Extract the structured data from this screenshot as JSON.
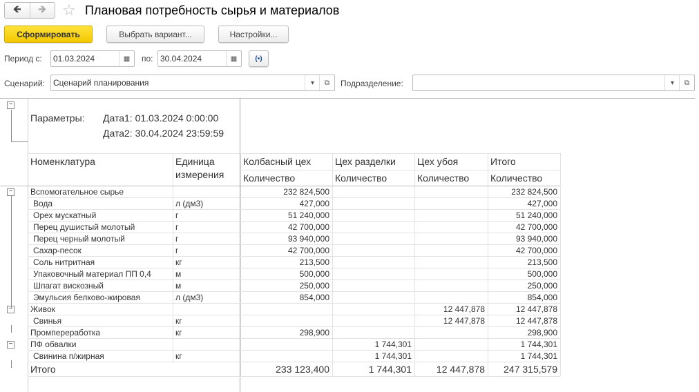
{
  "header": {
    "title": "Плановая потребность сырья и материалов",
    "back_icon": "arrow-left",
    "forward_icon": "arrow-right",
    "favorite_icon": "star"
  },
  "toolbar": {
    "generate": "Сформировать",
    "choose_variant": "Выбрать вариант...",
    "settings": "Настройки..."
  },
  "period": {
    "from_label": "Период с:",
    "from_value": "01.03.2024",
    "to_label": "по:",
    "to_value": "30.04.2024"
  },
  "scenario": {
    "label": "Сценарий:",
    "value": "Сценарий планирования"
  },
  "division": {
    "label": "Подразделение:",
    "value": ""
  },
  "report": {
    "params_label": "Параметры:",
    "date1": "Дата1: 01.03.2024 0:00:00",
    "date2": "Дата2: 30.04.2024 23:59:59",
    "headers": {
      "name": "Номенклатура",
      "unit1": "Единица",
      "unit2": "измерения",
      "cols": [
        "Колбасный цех",
        "Цех разделки",
        "Цех убоя",
        "Итого"
      ],
      "sub": "Количество"
    },
    "rows": [
      {
        "name": "Вспомогательное сырье",
        "unit": "",
        "v": [
          "232 824,500",
          "",
          "",
          "232 824,500"
        ],
        "level": 0,
        "group": true
      },
      {
        "name": "Вода",
        "unit": "л (дм3)",
        "v": [
          "427,000",
          "",
          "",
          "427,000"
        ],
        "level": 1
      },
      {
        "name": "Орех мускатный",
        "unit": "г",
        "v": [
          "51 240,000",
          "",
          "",
          "51 240,000"
        ],
        "level": 1
      },
      {
        "name": "Перец душистый молотый",
        "unit": "г",
        "v": [
          "42 700,000",
          "",
          "",
          "42 700,000"
        ],
        "level": 1
      },
      {
        "name": "Перец черный молотый",
        "unit": "г",
        "v": [
          "93 940,000",
          "",
          "",
          "93 940,000"
        ],
        "level": 1
      },
      {
        "name": "Сахар-песок",
        "unit": "г",
        "v": [
          "42 700,000",
          "",
          "",
          "42 700,000"
        ],
        "level": 1
      },
      {
        "name": "Соль нитритная",
        "unit": "кг",
        "v": [
          "213,500",
          "",
          "",
          "213,500"
        ],
        "level": 1
      },
      {
        "name": "Упаковочный материал ПП 0,4",
        "unit": "м",
        "v": [
          "500,000",
          "",
          "",
          "500,000"
        ],
        "level": 1
      },
      {
        "name": "Шпагат вискозный",
        "unit": "м",
        "v": [
          "250,000",
          "",
          "",
          "250,000"
        ],
        "level": 1
      },
      {
        "name": "Эмульсия белково-жировая",
        "unit": "л (дм3)",
        "v": [
          "854,000",
          "",
          "",
          "854,000"
        ],
        "level": 1
      },
      {
        "name": "Живок",
        "unit": "",
        "v": [
          "",
          "",
          "12 447,878",
          "12 447,878"
        ],
        "level": 0,
        "group": true
      },
      {
        "name": "Свинья",
        "unit": "кг",
        "v": [
          "",
          "",
          "12 447,878",
          "12 447,878"
        ],
        "level": 1
      },
      {
        "name": "Промпереработка",
        "unit": "кг",
        "v": [
          "298,900",
          "",
          "",
          "298,900"
        ],
        "level": 0
      },
      {
        "name": "ПФ обвалки",
        "unit": "",
        "v": [
          "",
          "1 744,301",
          "",
          "1 744,301"
        ],
        "level": 0,
        "group": true
      },
      {
        "name": "Свинина п/жирная",
        "unit": "кг",
        "v": [
          "",
          "1 744,301",
          "",
          "1 744,301"
        ],
        "level": 1
      }
    ],
    "total": {
      "label": "Итого",
      "v": [
        "233 123,400",
        "1 744,301",
        "12 447,878",
        "247 315,579"
      ]
    }
  }
}
